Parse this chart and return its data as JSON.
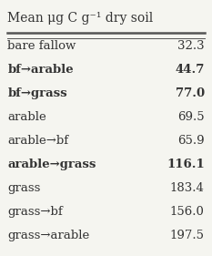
{
  "header": "Mean μg C g⁻¹ dry soil",
  "rows": [
    {
      "label": "bare fallow",
      "value": "32.3",
      "bold": false
    },
    {
      "label": "bf→arable",
      "value": "44.7",
      "bold": true
    },
    {
      "label": "bf→grass",
      "value": "77.0",
      "bold": true
    },
    {
      "label": "arable",
      "value": "69.5",
      "bold": false
    },
    {
      "label": "arable→bf",
      "value": "65.9",
      "bold": false
    },
    {
      "label": "arable→grass",
      "value": "116.1",
      "bold": true
    },
    {
      "label": "grass",
      "value": "183.4",
      "bold": false
    },
    {
      "label": "grass→bf",
      "value": "156.0",
      "bold": false
    },
    {
      "label": "grass→arable",
      "value": "197.5",
      "bold": false
    }
  ],
  "bg_color": "#f5f5f0",
  "text_color": "#333333",
  "header_fontsize": 10,
  "row_fontsize": 9.5,
  "line_color": "#555555"
}
